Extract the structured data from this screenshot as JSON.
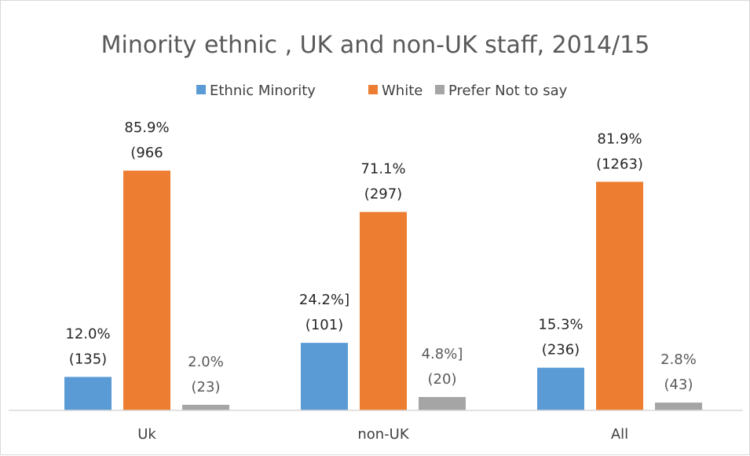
{
  "chart_data": {
    "type": "bar",
    "title": "Minority ethnic , UK and non-UK staff, 2014/15",
    "categories": [
      "Uk",
      "non-UK",
      "All"
    ],
    "series": [
      {
        "name": "Ethnic Minority",
        "color": "#5b9bd5",
        "values": [
          12.0,
          24.2,
          15.3
        ],
        "label_lines": [
          [
            "12.0%",
            "(135)"
          ],
          [
            "24.2%]",
            "(101)"
          ],
          [
            "15.3%",
            "(236)"
          ]
        ]
      },
      {
        "name": "White",
        "color": "#ed7d31",
        "values": [
          85.9,
          71.1,
          81.9
        ],
        "label_lines": [
          [
            "85.9%",
            "(966"
          ],
          [
            "71.1%",
            "(297)"
          ],
          [
            "81.9%",
            "(1263)"
          ]
        ]
      },
      {
        "name": "Prefer Not to say",
        "color": "#a5a5a5",
        "values": [
          2.0,
          4.8,
          2.8
        ],
        "label_lines": [
          [
            "2.0%",
            "(23)"
          ],
          [
            "4.8%]",
            "(20)"
          ],
          [
            "2.8%",
            "(43)"
          ]
        ]
      }
    ],
    "ylim": [
      0,
      100
    ],
    "grid": false,
    "legend_position": "top"
  }
}
